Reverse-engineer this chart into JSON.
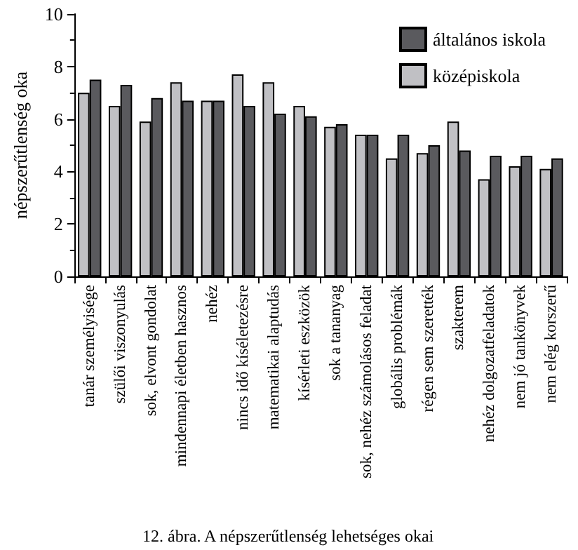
{
  "chart_data": {
    "type": "bar",
    "ylabel": "népszerűtlenség oka",
    "categories": [
      "tanár személyisége",
      "szülői viszonyulás",
      "sok, elvont gondolat",
      "mindennapi életben hasznos",
      "nehéz",
      "nincs idő kíséletezésre",
      "matematikai alaptudás",
      "kísérleti eszközök",
      "sok a tananyag",
      "sok, nehéz számolásos feladat",
      "globális problémák",
      "régen sem szerették",
      "szakterem",
      "nehéz dolgozatfeladatok",
      "nem jó tankönyvek",
      "nem elég korszerű"
    ],
    "series": [
      {
        "name": "középiskola",
        "color": "#c0c0c4",
        "values": [
          7.0,
          6.5,
          5.9,
          7.4,
          6.7,
          7.7,
          7.4,
          6.5,
          5.7,
          5.4,
          4.5,
          4.7,
          5.9,
          3.7,
          4.2,
          4.1
        ]
      },
      {
        "name": "általános iskola",
        "color": "#5a5a5e",
        "values": [
          7.5,
          7.3,
          6.8,
          6.7,
          6.7,
          6.5,
          6.2,
          6.1,
          5.8,
          5.4,
          5.4,
          5.0,
          4.8,
          4.6,
          4.6,
          4.5
        ]
      }
    ],
    "ylim": [
      0,
      10
    ],
    "yticks": [
      0,
      2,
      4,
      6,
      8,
      10
    ],
    "grid": false,
    "legend": "top right",
    "annotations": [
      "12. ábra. A népszerűtlenség lehetséges okai"
    ]
  }
}
